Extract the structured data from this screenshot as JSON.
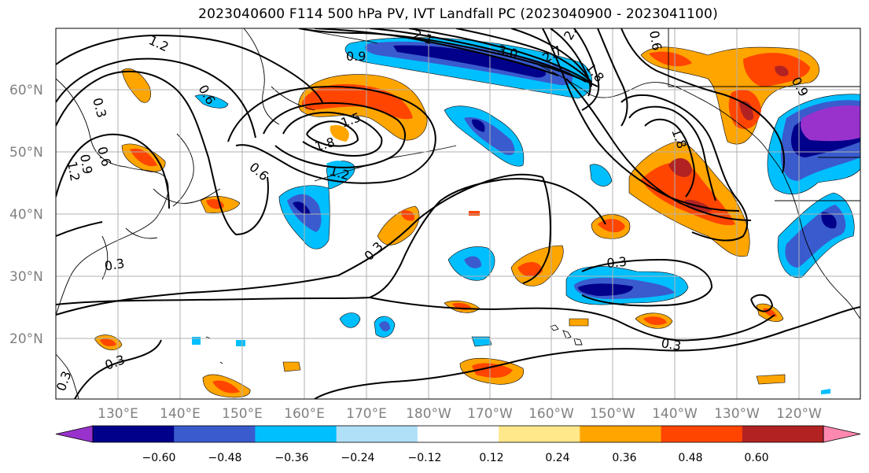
{
  "title": "2023040600 F114 500 hPa PV, IVT Landfall PC (2023040900 - 2023041100)",
  "lat_labels": [
    "60°N",
    "50°N",
    "40°N",
    "30°N",
    "20°N"
  ],
  "lon_labels": [
    "130°E",
    "140°E",
    "150°E",
    "160°E",
    "170°E",
    "180°W",
    "170°W",
    "160°W",
    "150°W",
    "140°W",
    "130°W",
    "120°W"
  ],
  "contour_labels": [
    "1.2",
    "0.9",
    "0.6",
    "0.3",
    "0.6",
    "0.9",
    "1.2",
    "1.5",
    "1.8",
    "1.2",
    "0.6",
    "0.3",
    "0.3",
    "0.3",
    "0.3",
    "2.1",
    "3.0",
    "2.7",
    "2.4",
    "1.8",
    "0.6",
    "1.8",
    "0.9",
    "0.3",
    "0.3"
  ],
  "colorbar": {
    "ticks": [
      "−0.60",
      "−0.48",
      "−0.36",
      "−0.24",
      "−0.12",
      "0.12",
      "0.24",
      "0.36",
      "0.48",
      "0.60"
    ],
    "colors": [
      "#9932cc",
      "#00008b",
      "#3a5bcd",
      "#00bfff",
      "#b0e0f8",
      "#ffffff",
      "#ffe88a",
      "#ffa500",
      "#ff4500",
      "#b22222",
      "#ff88b0"
    ]
  }
}
